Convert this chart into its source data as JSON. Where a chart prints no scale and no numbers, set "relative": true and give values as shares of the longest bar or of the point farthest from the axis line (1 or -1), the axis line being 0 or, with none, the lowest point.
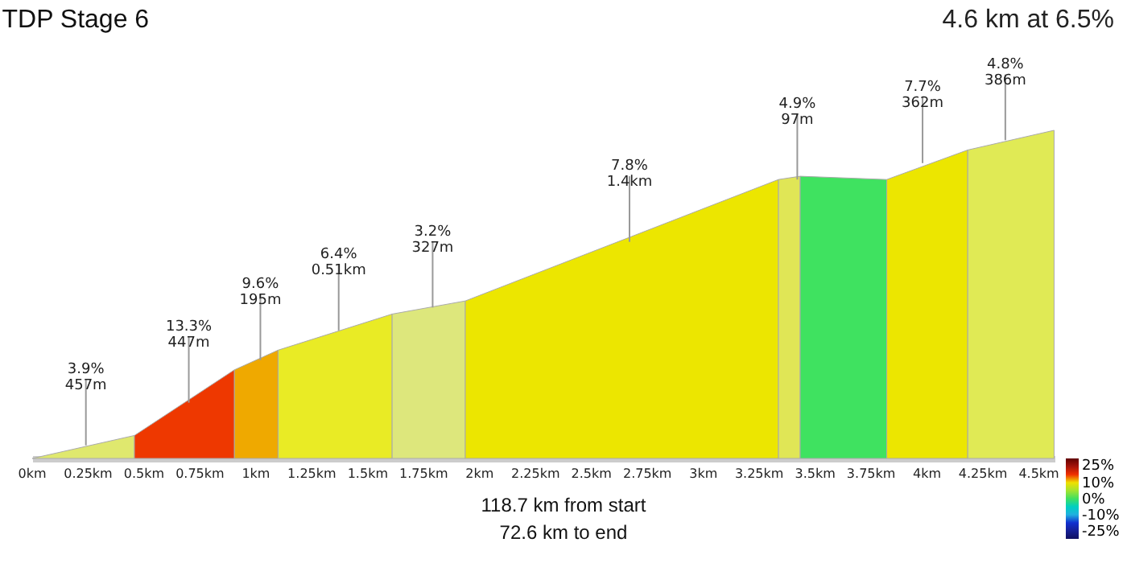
{
  "chart_data": {
    "type": "area",
    "title": "TDP Stage 6",
    "subtitle": "4.6 km at 6.5%",
    "relative": true,
    "grid": false,
    "xlim": [
      0,
      4.57
    ],
    "xticks": [
      {
        "value": 0,
        "label": "0km"
      },
      {
        "value": 0.25,
        "label": "0.25km"
      },
      {
        "value": 0.5,
        "label": "0.5km"
      },
      {
        "value": 0.75,
        "label": "0.75km"
      },
      {
        "value": 1,
        "label": "1km"
      },
      {
        "value": 1.25,
        "label": "1.25km"
      },
      {
        "value": 1.5,
        "label": "1.5km"
      },
      {
        "value": 1.75,
        "label": "1.75km"
      },
      {
        "value": 2,
        "label": "2km"
      },
      {
        "value": 2.25,
        "label": "2.25km"
      },
      {
        "value": 2.5,
        "label": "2.5km"
      },
      {
        "value": 2.75,
        "label": "2.75km"
      },
      {
        "value": 3,
        "label": "3km"
      },
      {
        "value": 3.25,
        "label": "3.25km"
      },
      {
        "value": 3.5,
        "label": "3.5km"
      },
      {
        "value": 3.75,
        "label": "3.75km"
      },
      {
        "value": 4,
        "label": "4km"
      },
      {
        "value": 4.25,
        "label": "4.25km"
      },
      {
        "value": 4.5,
        "label": "4.5km"
      }
    ],
    "clim": [
      -25,
      25
    ],
    "cticks": [
      {
        "value": 25,
        "label": "25%"
      },
      {
        "value": 10,
        "label": "10%"
      },
      {
        "value": 0,
        "label": "0%"
      },
      {
        "value": -10,
        "label": "-10%"
      },
      {
        "value": -25,
        "label": "-25%"
      }
    ],
    "series": [
      {
        "x": [
          0,
          0.457
        ],
        "values": [
          0,
          0.07
        ],
        "color": "#dfe86e"
      },
      {
        "x": [
          0.457,
          0.904
        ],
        "values": [
          0.07,
          0.27
        ],
        "color": "#ee3800"
      },
      {
        "x": [
          0.904,
          1.099
        ],
        "values": [
          0.27,
          0.33
        ],
        "color": "#efa900"
      },
      {
        "x": [
          1.099,
          1.609
        ],
        "values": [
          0.33,
          0.44
        ],
        "color": "#e9eb25"
      },
      {
        "x": [
          1.609,
          1.936
        ],
        "values": [
          0.44,
          0.48
        ],
        "color": "#dde77c"
      },
      {
        "x": [
          1.936,
          3.336
        ],
        "values": [
          0.48,
          0.85
        ],
        "color": "#ece600"
      },
      {
        "x": [
          3.336,
          3.433
        ],
        "values": [
          0.85,
          0.86
        ],
        "color": "#e0e656"
      },
      {
        "x": [
          3.433,
          3.82
        ],
        "values": [
          0.86,
          0.85
        ],
        "color": "#3fe260"
      },
      {
        "x": [
          3.82,
          4.182
        ],
        "values": [
          0.85,
          0.94
        ],
        "color": "#ece600"
      },
      {
        "x": [
          4.182,
          4.568
        ],
        "values": [
          0.94,
          1
        ],
        "color": "#e0ea55"
      }
    ],
    "annotations": [
      {
        "text": "3.9%\n457m",
        "x": 0.24,
        "y": 0.04
      },
      {
        "text": "13.3%\n447m",
        "x": 0.7,
        "y": 0.17
      },
      {
        "text": "9.6%\n195m",
        "x": 1.02,
        "y": 0.3
      },
      {
        "text": "6.4%\n0.51km",
        "x": 1.37,
        "y": 0.39
      },
      {
        "text": "3.2%\n327m",
        "x": 1.79,
        "y": 0.46
      },
      {
        "text": "7.8%\n1.4km",
        "x": 2.67,
        "y": 0.66
      },
      {
        "text": "4.9%\n97m",
        "x": 3.42,
        "y": 0.85
      },
      {
        "text": "7.7%\n362m",
        "x": 3.98,
        "y": 0.9
      },
      {
        "text": "4.8%\n386m",
        "x": 4.35,
        "y": 0.97
      },
      "118.7 km from start",
      "72.6 km to end"
    ]
  }
}
